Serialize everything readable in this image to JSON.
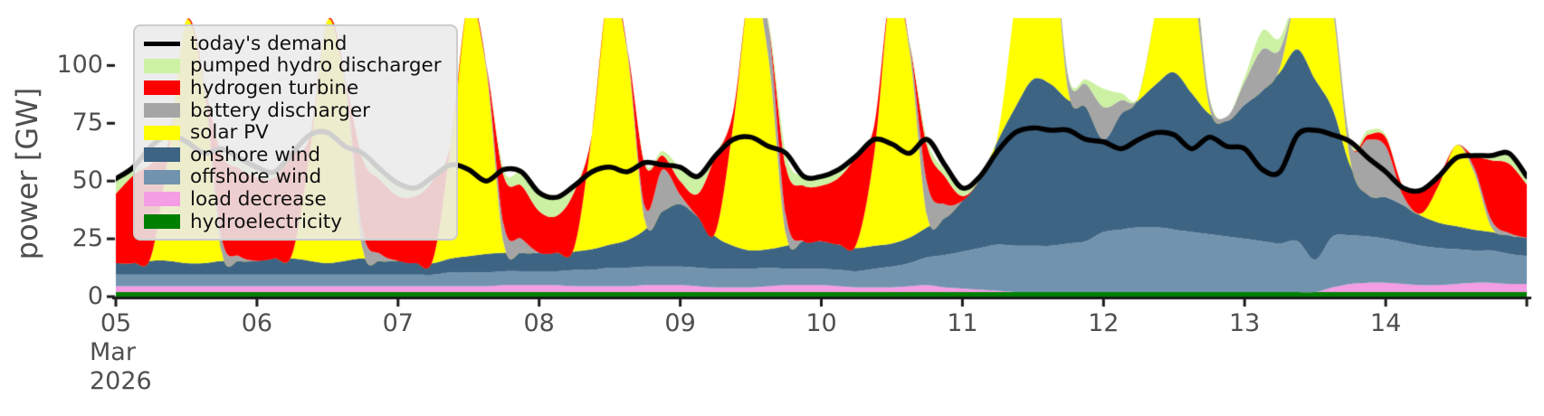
{
  "figure": {
    "ylabel": "power [GW]",
    "y_ticks": [
      0,
      25,
      50,
      75,
      100
    ],
    "y_tick_labels": [
      "0",
      "25",
      "50",
      "75",
      "100"
    ],
    "x_tick_labels": [
      "05",
      "06",
      "07",
      "08",
      "09",
      "10",
      "11",
      "12",
      "13",
      "14"
    ],
    "month_line1": "Mar",
    "month_line2": "2026",
    "colors": {
      "background": "#ffffff",
      "axis": "#1a1a1a",
      "tick_text": "#4f4f4f",
      "legend_bg": "#eaeaea",
      "legend_border": "#cccccc"
    }
  },
  "chart_data": {
    "type": "area",
    "stacked": true,
    "title": "",
    "xlabel": "",
    "ylabel": "power [GW]",
    "x_unit": "day of March 2026 (3-hour resolution)",
    "xlim": [
      5,
      15
    ],
    "ylim": [
      0,
      120.5
    ],
    "grid": false,
    "legend_position": "upper left",
    "x_ticks": [
      5,
      6,
      7,
      8,
      9,
      10,
      11,
      12,
      13,
      14,
      15
    ],
    "x": [
      5,
      5.125,
      5.25,
      5.375,
      5.5,
      5.625,
      5.75,
      5.875,
      6,
      6.125,
      6.25,
      6.375,
      6.5,
      6.625,
      6.75,
      6.875,
      7,
      7.125,
      7.25,
      7.375,
      7.5,
      7.625,
      7.75,
      7.875,
      8,
      8.125,
      8.25,
      8.375,
      8.5,
      8.625,
      8.75,
      8.875,
      9,
      9.125,
      9.25,
      9.375,
      9.5,
      9.625,
      9.75,
      9.875,
      10,
      10.125,
      10.25,
      10.375,
      10.5,
      10.625,
      10.75,
      10.875,
      11,
      11.125,
      11.25,
      11.375,
      11.5,
      11.625,
      11.75,
      11.875,
      12,
      12.125,
      12.25,
      12.375,
      12.5,
      12.625,
      12.75,
      12.875,
      13,
      13.125,
      13.25,
      13.375,
      13.5,
      13.625,
      13.75,
      13.875,
      14,
      14.125,
      14.25,
      14.375,
      14.5,
      14.625,
      14.75,
      14.875,
      15
    ],
    "series": [
      {
        "name": "hydroelectricity",
        "color": "#008000",
        "values": [
          2,
          2,
          2,
          2,
          2,
          2,
          2,
          2,
          2,
          2,
          2,
          2,
          2,
          2,
          2,
          2,
          2,
          2,
          2,
          2,
          2,
          2,
          2,
          2,
          2,
          2,
          2,
          2,
          2,
          2,
          2,
          2,
          2,
          2,
          2,
          2,
          2,
          2,
          2,
          2,
          2,
          2,
          2,
          2,
          2,
          2,
          2,
          2,
          2,
          2,
          2,
          2,
          2,
          2,
          2,
          2,
          2,
          2,
          2,
          2,
          2,
          2,
          2,
          2,
          2,
          2,
          2,
          2,
          2,
          2,
          2,
          2,
          2,
          2,
          2,
          2,
          2,
          2,
          2,
          2,
          2
        ]
      },
      {
        "name": "load decrease",
        "color": "#f49ce4",
        "values": [
          2.5,
          2.5,
          2.5,
          2.5,
          2.5,
          2.5,
          2.5,
          2.5,
          2.5,
          2.5,
          2.5,
          2.5,
          2.5,
          2.5,
          2.5,
          2.5,
          2.5,
          2.5,
          2.5,
          2.5,
          2.5,
          2.5,
          3,
          3,
          3,
          3,
          2.5,
          2.5,
          2.5,
          2.5,
          3,
          3,
          3,
          2.5,
          2,
          2,
          2,
          2.5,
          3,
          3,
          3,
          2.5,
          2,
          2,
          2,
          2.5,
          3,
          2,
          1.5,
          1,
          0.5,
          0,
          0,
          0,
          0,
          0,
          0,
          0,
          0,
          0,
          0,
          0,
          0,
          0,
          0,
          0,
          0,
          0,
          0,
          2,
          3.5,
          4,
          4,
          3.5,
          3,
          3,
          3.5,
          4,
          4,
          3.5,
          3.5
        ]
      },
      {
        "name": "offshore wind",
        "color": "#7293ae",
        "values": [
          5,
          5,
          5,
          5,
          5,
          5,
          5,
          5,
          5,
          5,
          5,
          5,
          5,
          5,
          5,
          5,
          5,
          5,
          5,
          6,
          6,
          6,
          6,
          6,
          6,
          6,
          7,
          7,
          8,
          8,
          8,
          8,
          8,
          8,
          8,
          8,
          8,
          8,
          7,
          7,
          7,
          7,
          7,
          8,
          9,
          10,
          12,
          14,
          16,
          18,
          20,
          20,
          20,
          20,
          21,
          22,
          26,
          27,
          28,
          28,
          27,
          26,
          25,
          24,
          23,
          22,
          21,
          22,
          14,
          22,
          21,
          20,
          19,
          18,
          17,
          16,
          15,
          14,
          14,
          13,
          12
        ]
      },
      {
        "name": "onshore wind",
        "color": "#3e6484",
        "values": [
          5,
          5,
          6,
          6,
          5,
          5,
          6,
          6,
          6,
          7,
          7,
          6,
          5,
          6,
          7,
          6,
          6,
          5,
          5,
          6,
          7,
          8,
          8,
          8,
          8,
          8,
          8,
          9,
          10,
          12,
          16,
          24,
          27,
          22,
          14,
          10,
          8,
          8,
          10,
          12,
          12,
          11,
          10,
          10,
          10,
          11,
          13,
          16,
          22,
          30,
          45,
          60,
          72,
          70,
          62,
          58,
          40,
          50,
          55,
          62,
          68,
          60,
          52,
          50,
          58,
          65,
          74,
          83,
          78,
          55,
          30,
          18,
          18,
          16,
          13,
          11,
          10,
          9,
          8,
          8,
          8
        ]
      },
      {
        "name": "solar PV",
        "color": "#ffff00",
        "values": [
          0,
          0,
          2,
          47,
          105,
          76,
          4,
          0,
          0,
          0,
          2,
          47,
          105,
          76,
          4,
          0,
          0,
          0,
          2,
          50,
          110,
          80,
          4,
          0,
          0,
          0,
          2,
          50,
          112,
          81,
          4,
          0,
          0,
          0,
          2,
          52,
          115,
          83,
          5,
          0,
          0,
          0,
          2,
          40,
          112,
          81,
          5,
          0,
          0,
          0,
          2,
          47,
          105,
          76,
          4,
          0,
          0,
          0,
          2,
          34,
          75,
          54,
          3,
          0,
          0,
          0,
          2,
          27,
          60,
          43,
          2,
          0,
          0,
          0,
          1,
          16,
          35,
          25,
          2,
          0,
          0
        ]
      },
      {
        "name": "battery discharger",
        "color": "#a5a5a5",
        "values": [
          0,
          0,
          0,
          0,
          0,
          2,
          6,
          2,
          0,
          0,
          0,
          0,
          0,
          3,
          8,
          3,
          0,
          0,
          0,
          0,
          0,
          2,
          8,
          6,
          0,
          0,
          0,
          0,
          0,
          2,
          6,
          18,
          4,
          0,
          0,
          0,
          0,
          14,
          8,
          0,
          0,
          0,
          0,
          0,
          0,
          3,
          14,
          6,
          0,
          0,
          0,
          0,
          0,
          2,
          6,
          10,
          14,
          6,
          0,
          0,
          2,
          10,
          4,
          2,
          10,
          18,
          8,
          0,
          0,
          4,
          8,
          24,
          22,
          4,
          0,
          0,
          0,
          2,
          3,
          1,
          0
        ]
      },
      {
        "name": "hydrogen turbine",
        "color": "#ff0000",
        "values": [
          30,
          38,
          40,
          5,
          0,
          0,
          36,
          38,
          36,
          35,
          43,
          7,
          0,
          0,
          31,
          32,
          28,
          29,
          34,
          0,
          0,
          0,
          21,
          23,
          18,
          16,
          24,
          0,
          0,
          0,
          18,
          6,
          6,
          10,
          33,
          6,
          0,
          0,
          21,
          24,
          24,
          29,
          38,
          12,
          0,
          0,
          16,
          12,
          2,
          0,
          0,
          0,
          0,
          0,
          0,
          0,
          0,
          0,
          0,
          0,
          0,
          0,
          0,
          0,
          0,
          0,
          0,
          0,
          0,
          0,
          0,
          2,
          4,
          4,
          10,
          4,
          0,
          5,
          26,
          30,
          23
        ]
      },
      {
        "name": "pumped hydro discharger",
        "color": "#ccf1a3",
        "values": [
          7,
          3,
          0,
          0,
          0,
          0,
          2,
          4,
          4,
          2,
          0,
          0,
          0,
          0,
          2,
          4,
          5,
          3,
          1,
          0,
          0,
          0,
          3,
          6,
          8,
          8,
          2,
          0,
          0,
          0,
          1,
          2,
          6,
          8,
          0,
          0,
          0,
          2,
          6,
          4,
          4,
          3,
          0,
          0,
          0,
          1,
          3,
          3,
          4,
          2,
          0,
          0,
          0,
          0,
          1,
          2,
          8,
          3,
          0,
          0,
          0,
          2,
          1,
          0,
          2,
          8,
          5,
          0,
          0,
          0,
          1,
          2,
          1,
          0,
          0,
          0,
          0,
          0,
          2,
          4,
          3
        ]
      }
    ],
    "line_series": [
      {
        "name": "today's demand",
        "color": "#000000",
        "line_width": 5.5,
        "values": [
          51,
          56,
          65,
          70,
          67,
          62,
          64,
          60,
          56,
          54,
          62,
          70,
          71,
          65,
          62,
          55,
          49,
          47,
          52,
          57,
          55,
          50,
          55,
          54,
          45,
          43,
          48,
          54,
          56,
          54,
          58,
          57,
          56,
          52,
          61,
          68,
          69,
          65,
          62,
          52,
          52,
          55,
          61,
          68,
          66,
          62,
          68,
          57,
          47,
          52,
          63,
          71,
          73,
          72,
          72,
          68,
          67,
          64,
          68,
          71,
          70,
          64,
          69,
          65,
          64,
          55,
          54,
          70,
          72,
          70,
          67,
          60,
          54,
          47,
          46,
          52,
          60,
          61,
          61,
          62,
          52
        ]
      }
    ],
    "legend": {
      "entries": [
        {
          "label": "today's demand",
          "color": "#000000",
          "type": "line"
        },
        {
          "label": "pumped hydro discharger",
          "color": "#ccf1a3",
          "type": "patch"
        },
        {
          "label": "hydrogen turbine",
          "color": "#ff0000",
          "type": "patch"
        },
        {
          "label": "battery discharger",
          "color": "#a5a5a5",
          "type": "patch"
        },
        {
          "label": "solar PV",
          "color": "#ffff00",
          "type": "patch"
        },
        {
          "label": "onshore wind",
          "color": "#3e6484",
          "type": "patch"
        },
        {
          "label": "offshore wind",
          "color": "#7293ae",
          "type": "patch"
        },
        {
          "label": "load decrease",
          "color": "#f49ce4",
          "type": "patch"
        },
        {
          "label": "hydroelectricity",
          "color": "#008000",
          "type": "patch"
        }
      ]
    }
  }
}
